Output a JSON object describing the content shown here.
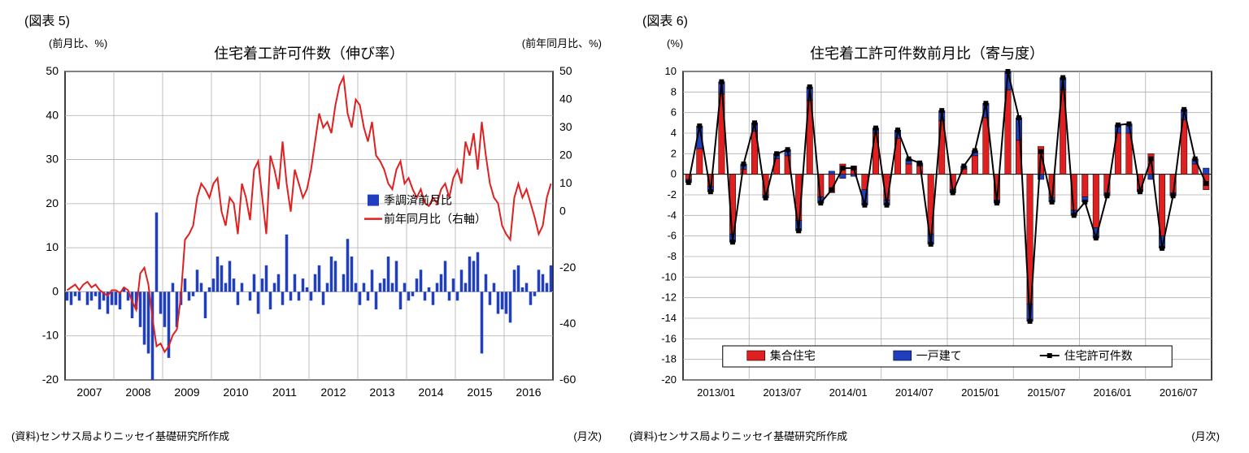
{
  "chart5": {
    "figLabel": "(図表 5)",
    "title": "住宅着工許可件数（伸び率）",
    "yLabelLeft": "(前月比、%)",
    "yLabelRight": "(前年同月比、%)",
    "xUnit": "(月次)",
    "source": "(資料)センサス局よりニッセイ基礎研究所作成",
    "legend": {
      "bar": "季調済前月比",
      "line": "前年同月比（右軸）"
    },
    "leftAxis": {
      "min": -20,
      "max": 50,
      "step": 10
    },
    "rightAxis": {
      "min": -60,
      "max": 50,
      "step": 20,
      "reversed": true
    },
    "rightTicks": [
      50,
      40,
      30,
      20,
      10,
      0,
      -20,
      -40,
      -60
    ],
    "xTicks": [
      "2007",
      "2008",
      "2009",
      "2010",
      "2011",
      "2012",
      "2013",
      "2014",
      "2015",
      "2016"
    ],
    "colors": {
      "bar": "#1f3fbf",
      "line": "#e02020",
      "grid": "#b0aeac",
      "axis": "#000000",
      "bg": "#ffffff",
      "border": "#000000"
    },
    "bars": [
      -2,
      -3,
      -1,
      -2,
      0,
      -3,
      -2,
      -1,
      -4,
      -2,
      -5,
      -3,
      -3,
      -4,
      1,
      -2,
      -6,
      -4,
      -8,
      -12,
      -14,
      -20,
      18,
      -5,
      -8,
      -15,
      2,
      -8,
      -3,
      3,
      -2,
      -1,
      5,
      2,
      -6,
      1,
      3,
      8,
      6,
      2,
      7,
      3,
      -3,
      2,
      0,
      -2,
      4,
      -5,
      3,
      6,
      -4,
      2,
      4,
      -3,
      13,
      -2,
      4,
      -2,
      3,
      1,
      -2,
      4,
      6,
      -3,
      2,
      8,
      7,
      0,
      4,
      12,
      8,
      2,
      -3,
      2,
      -2,
      5,
      -4,
      2,
      3,
      8,
      2,
      7,
      -4,
      2,
      -2,
      -1,
      3,
      5,
      -2,
      1,
      -3,
      2,
      4,
      7,
      -2,
      3,
      -2,
      5,
      2,
      8,
      7,
      9,
      -14,
      4,
      -3,
      2,
      -5,
      -4,
      -5,
      -7,
      5,
      6,
      1,
      2,
      -3,
      -1,
      5,
      4,
      2,
      6
    ],
    "line": [
      -28,
      -27,
      -26,
      -28,
      -26,
      -25,
      -27,
      -26,
      -28,
      -29,
      -30,
      -28,
      -28,
      -29,
      -27,
      -28,
      -32,
      -35,
      -22,
      -20,
      -26,
      -38,
      -48,
      -47,
      -50,
      -48,
      -44,
      -42,
      -30,
      -10,
      -8,
      -5,
      5,
      10,
      8,
      5,
      10,
      12,
      0,
      -5,
      5,
      3,
      -8,
      10,
      5,
      -3,
      15,
      18,
      5,
      -8,
      20,
      15,
      8,
      25,
      10,
      0,
      15,
      10,
      5,
      8,
      15,
      25,
      35,
      30,
      32,
      28,
      38,
      45,
      48,
      35,
      30,
      40,
      38,
      30,
      25,
      32,
      20,
      18,
      15,
      10,
      8,
      15,
      18,
      10,
      12,
      8,
      5,
      8,
      3,
      2,
      5,
      3,
      8,
      10,
      5,
      12,
      15,
      10,
      25,
      20,
      28,
      15,
      32,
      20,
      10,
      5,
      3,
      -5,
      -8,
      -10,
      5,
      10,
      5,
      8,
      3,
      -2,
      -8,
      -5,
      5,
      10
    ]
  },
  "chart6": {
    "figLabel": "(図表 6)",
    "title": "住宅着工許可件数前月比（寄与度）",
    "yLabel": "(%)",
    "xUnit": "(月次)",
    "source": "(資料)センサス局よりニッセイ基礎研究所作成",
    "legend": {
      "multi": "集合住宅",
      "single": "一戸建て",
      "total": "住宅許可件数"
    },
    "yAxis": {
      "min": -20,
      "max": 10,
      "step": 2
    },
    "xTicks": [
      "2013/01",
      "2013/07",
      "2014/01",
      "2014/07",
      "2015/01",
      "2015/07",
      "2016/01",
      "2016/07"
    ],
    "colors": {
      "multi": "#e02020",
      "single": "#1f3fbf",
      "total": "#000000",
      "grid": "#b0aeac",
      "axis": "#000000",
      "bg": "#ffffff"
    },
    "data": [
      {
        "m": -0.5,
        "s": -0.3,
        "t": -0.8
      },
      {
        "m": 2.5,
        "s": 2.2,
        "t": 4.7
      },
      {
        "m": -1.2,
        "s": -0.5,
        "t": -1.7
      },
      {
        "m": 7.8,
        "s": 1.2,
        "t": 9.0
      },
      {
        "m": -5.8,
        "s": -0.8,
        "t": -6.6
      },
      {
        "m": 0.5,
        "s": 0.5,
        "t": 1.0
      },
      {
        "m": 4.2,
        "s": 0.8,
        "t": 5.0
      },
      {
        "m": -2.0,
        "s": -0.3,
        "t": -2.3
      },
      {
        "m": 1.5,
        "s": 0.5,
        "t": 2.0
      },
      {
        "m": 1.8,
        "s": 0.6,
        "t": 2.4
      },
      {
        "m": -4.5,
        "s": -1.0,
        "t": -5.5
      },
      {
        "m": 7.2,
        "s": 1.3,
        "t": 8.5
      },
      {
        "m": -2.2,
        "s": -0.6,
        "t": -2.8
      },
      {
        "m": -1.8,
        "s": 0.3,
        "t": -1.5
      },
      {
        "m": 1.0,
        "s": -0.4,
        "t": 0.6
      },
      {
        "m": 0.8,
        "s": -0.2,
        "t": 0.6
      },
      {
        "m": -1.5,
        "s": -1.5,
        "t": -3.0
      },
      {
        "m": 4.0,
        "s": 0.5,
        "t": 4.5
      },
      {
        "m": -2.5,
        "s": -0.5,
        "t": -3.0
      },
      {
        "m": 3.5,
        "s": 0.8,
        "t": 4.3
      },
      {
        "m": 1.0,
        "s": 0.5,
        "t": 1.5
      },
      {
        "m": 0.8,
        "s": 0.3,
        "t": 1.1
      },
      {
        "m": -5.8,
        "s": -1.0,
        "t": -6.8
      },
      {
        "m": 5.2,
        "s": 1.0,
        "t": 6.2
      },
      {
        "m": -1.5,
        "s": -0.3,
        "t": -1.8
      },
      {
        "m": 0.5,
        "s": 0.3,
        "t": 0.8
      },
      {
        "m": 1.8,
        "s": 0.5,
        "t": 2.3
      },
      {
        "m": 5.5,
        "s": 1.4,
        "t": 6.9
      },
      {
        "m": -2.5,
        "s": -0.3,
        "t": -2.8
      },
      {
        "m": 8.2,
        "s": 1.8,
        "t": 10.0
      },
      {
        "m": 3.3,
        "s": 2.2,
        "t": 5.5
      },
      {
        "m": -12.6,
        "s": -1.7,
        "t": -14.3
      },
      {
        "m": 2.7,
        "s": -0.5,
        "t": 2.2
      },
      {
        "m": -2.3,
        "s": -0.4,
        "t": -2.7
      },
      {
        "m": 8.2,
        "s": 1.2,
        "t": 9.4
      },
      {
        "m": -3.5,
        "s": -0.5,
        "t": -4.0
      },
      {
        "m": -2.2,
        "s": -0.5,
        "t": -2.7
      },
      {
        "m": -5.2,
        "s": -1.0,
        "t": -6.2
      },
      {
        "m": -1.8,
        "s": -0.3,
        "t": -2.1
      },
      {
        "m": 4.0,
        "s": 0.8,
        "t": 4.8
      },
      {
        "m": 4.0,
        "s": 0.9,
        "t": 4.9
      },
      {
        "m": -1.5,
        "s": -0.2,
        "t": -1.7
      },
      {
        "m": 2.0,
        "s": -0.5,
        "t": 1.5
      },
      {
        "m": -6.0,
        "s": -1.2,
        "t": -7.2
      },
      {
        "m": -1.8,
        "s": -0.3,
        "t": -2.1
      },
      {
        "m": 5.3,
        "s": 1.0,
        "t": 6.3
      },
      {
        "m": 1.0,
        "s": 0.5,
        "t": 1.5
      },
      {
        "m": -1.5,
        "s": 0.6,
        "t": -0.9
      }
    ]
  }
}
